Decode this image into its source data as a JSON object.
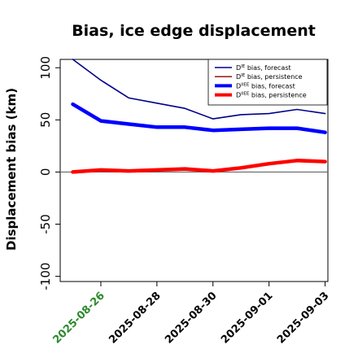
{
  "chart_data": {
    "type": "line",
    "title": "Bias, ice edge displacement",
    "xlabel": "",
    "ylabel": "Displacement bias (km)",
    "ylim": [
      -105,
      108
    ],
    "yticks": [
      -100,
      -50,
      0,
      50,
      100
    ],
    "ytick_labels": [
      "-100",
      "-50",
      "0",
      "50",
      "100"
    ],
    "x": [
      "2025-08-25",
      "2025-08-26",
      "2025-08-27",
      "2025-08-28",
      "2025-08-29",
      "2025-08-30",
      "2025-08-31",
      "2025-09-01",
      "2025-09-02",
      "2025-09-03"
    ],
    "xlim": [
      "2025-08-24",
      "2025-09-03"
    ],
    "xticks": [
      "2025-08-26",
      "2025-08-28",
      "2025-08-30",
      "2025-09-01",
      "2025-09-03"
    ],
    "xtick_colors": [
      "#2a8a2a",
      "#000000",
      "#000000",
      "#000000",
      "#000000"
    ],
    "zero_line": true,
    "grid": false,
    "legend_position": "top-right",
    "series": [
      {
        "name_main": "D",
        "name_sup": "IE",
        "name_rest": " bias, forecast",
        "color": "#00008b",
        "weight": "thin",
        "values": [
          108,
          88,
          71,
          66,
          61,
          51,
          55,
          56,
          60,
          56
        ]
      },
      {
        "name_main": "D",
        "name_sup": "IE",
        "name_rest": " bias, persistence",
        "color": "#8b0000",
        "weight": "thin",
        "values": [
          0,
          2,
          1,
          2,
          3,
          1,
          4,
          8,
          11,
          10
        ]
      },
      {
        "name_main": "D",
        "name_sup": "IIEE",
        "name_rest": " bias, forecast",
        "color": "#0000ff",
        "weight": "thick",
        "values": [
          65,
          49,
          46,
          43,
          43,
          40,
          41,
          42,
          42,
          38
        ]
      },
      {
        "name_main": "D",
        "name_sup": "IIEE",
        "name_rest": " bias, persistence",
        "color": "#ff0000",
        "weight": "thick",
        "values": [
          0,
          2,
          1,
          2,
          3,
          1,
          4,
          8,
          11,
          10
        ]
      }
    ]
  }
}
